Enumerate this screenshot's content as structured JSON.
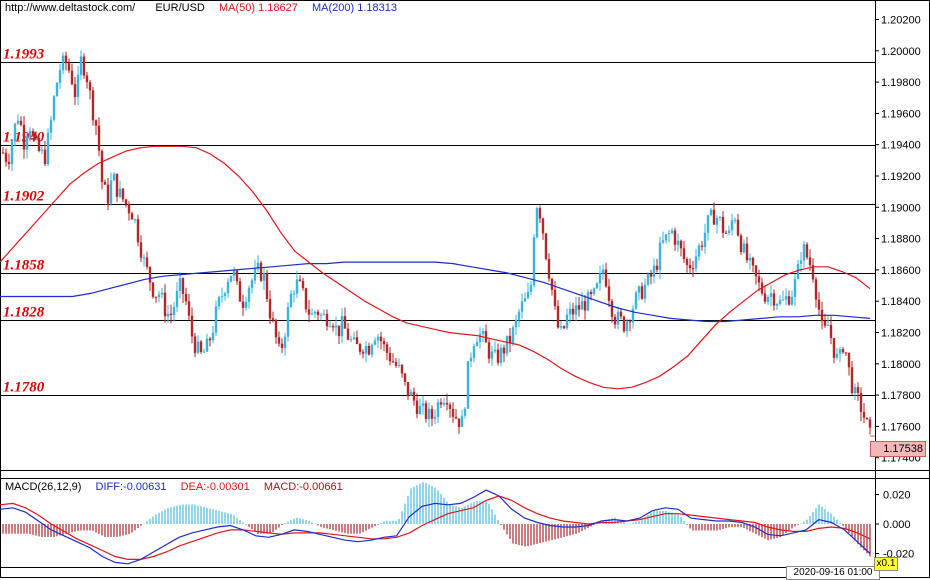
{
  "header": {
    "site": "http://www.deltastock.com/",
    "symbol": "EUR/USD",
    "ma50_label": "MA(50)",
    "ma50_value": "1.18627",
    "ma200_label": "MA(200)",
    "ma200_value": "1.18313"
  },
  "colors": {
    "up": "#39b4dc",
    "down": "#b3262a",
    "ma50": "#e0161b",
    "ma200": "#1d2ccc",
    "level_text": "#e00000",
    "macd_pos": "#39b4dc",
    "macd_neg": "#a3131b"
  },
  "macd_header": {
    "label": "MACD(26,12,9)",
    "diff": "DIFF:-0.00631",
    "dea": "DEA:-0.00301",
    "macd": "MACD:-0.00661"
  },
  "price_box": "1.17538",
  "date_label": "2020-09-16 01:00",
  "zoom_label": "x0.1",
  "chart_data": [
    {
      "type": "candlestick",
      "title": "EUR/USD",
      "ylim": [
        1.1735,
        1.2035
      ],
      "y_ticks": [
        "1.20200",
        "1.20000",
        "1.19800",
        "1.19600",
        "1.19400",
        "1.19200",
        "1.19000",
        "1.18800",
        "1.18600",
        "1.18400",
        "1.18200",
        "1.18000",
        "1.17800",
        "1.17600",
        "1.17400"
      ],
      "levels": [
        {
          "label": "1.1993",
          "value": 1.1993
        },
        {
          "label": "1.1940",
          "value": 1.194
        },
        {
          "label": "1.1902",
          "value": 1.1902
        },
        {
          "label": "1.1858",
          "value": 1.1858
        },
        {
          "label": "1.1828",
          "value": 1.1828
        },
        {
          "label": "1.1780",
          "value": 1.178
        }
      ],
      "close_path": [
        1.1935,
        1.193,
        1.1948,
        1.196,
        1.1942,
        1.1955,
        1.194,
        1.1935,
        1.1932,
        1.195,
        1.1975,
        1.199,
        1.1993,
        1.1985,
        1.197,
        1.1995,
        1.1985,
        1.1965,
        1.195,
        1.1915,
        1.1905,
        1.192,
        1.191,
        1.1905,
        1.19,
        1.1895,
        1.188,
        1.1865,
        1.1855,
        1.1845,
        1.1845,
        1.1835,
        1.183,
        1.184,
        1.185,
        1.184,
        1.182,
        1.181,
        1.1805,
        1.181,
        1.182,
        1.1835,
        1.1845,
        1.1855,
        1.186,
        1.1845,
        1.184,
        1.185,
        1.1855,
        1.186,
        1.1855,
        1.1835,
        1.182,
        1.1805,
        1.1822,
        1.1842,
        1.1852,
        1.1848,
        1.1838,
        1.183,
        1.1835,
        1.183,
        1.183,
        1.183,
        1.182,
        1.1825,
        1.1818,
        1.1812,
        1.181,
        1.1812,
        1.181,
        1.182,
        1.1818,
        1.181,
        1.1805,
        1.18,
        1.1795,
        1.1785,
        1.178,
        1.1775,
        1.177,
        1.1768,
        1.1765,
        1.1772,
        1.178,
        1.178,
        1.177,
        1.1765,
        1.1762,
        1.1795,
        1.1815,
        1.182,
        1.1815,
        1.1808,
        1.1803,
        1.1805,
        1.181,
        1.1815,
        1.1823,
        1.1835,
        1.184,
        1.1845,
        1.1905,
        1.1895,
        1.187,
        1.185,
        1.1825,
        1.1818,
        1.183,
        1.1833,
        1.1835,
        1.1838,
        1.184,
        1.1842,
        1.185,
        1.1862,
        1.1845,
        1.183,
        1.1828,
        1.1825,
        1.1832,
        1.184,
        1.1845,
        1.185,
        1.1855,
        1.1862,
        1.1875,
        1.188,
        1.1885,
        1.1878,
        1.187,
        1.1862,
        1.1865,
        1.1872,
        1.188,
        1.189,
        1.1895,
        1.1893,
        1.1885,
        1.1882,
        1.1898,
        1.188,
        1.187,
        1.1862,
        1.1855,
        1.1848,
        1.1844,
        1.1845,
        1.1842,
        1.1838,
        1.1842,
        1.1845,
        1.1855,
        1.1875,
        1.1868,
        1.186,
        1.184,
        1.1818,
        1.1825,
        1.181,
        1.18,
        1.1815,
        1.1795,
        1.178,
        1.1775,
        1.1765,
        1.1754
      ],
      "ma50": [
        1.1865,
        1.1875,
        1.1885,
        1.1895,
        1.1905,
        1.1915,
        1.1922,
        1.1928,
        1.1932,
        1.1936,
        1.1938,
        1.1939,
        1.1939,
        1.1939,
        1.1938,
        1.1934,
        1.1928,
        1.192,
        1.191,
        1.1898,
        1.1884,
        1.1872,
        1.1865,
        1.1858,
        1.1852,
        1.1846,
        1.184,
        1.1835,
        1.183,
        1.1826,
        1.1824,
        1.1822,
        1.182,
        1.1819,
        1.1818,
        1.1816,
        1.1814,
        1.1812,
        1.1808,
        1.1803,
        1.1797,
        1.1792,
        1.1788,
        1.1785,
        1.1784,
        1.1785,
        1.1788,
        1.1792,
        1.1798,
        1.1805,
        1.1815,
        1.1825,
        1.1833,
        1.184,
        1.1847,
        1.1852,
        1.1857,
        1.186,
        1.1862,
        1.1862,
        1.1859,
        1.1855,
        1.1848
      ],
      "ma200": [
        1.1843,
        1.1843,
        1.1843,
        1.1843,
        1.1843,
        1.1845,
        1.1848,
        1.1851,
        1.1854,
        1.1856,
        1.1857,
        1.1858,
        1.1859,
        1.186,
        1.1861,
        1.1862,
        1.1863,
        1.1864,
        1.1864,
        1.1865,
        1.1865,
        1.1865,
        1.1865,
        1.1865,
        1.1865,
        1.1864,
        1.1862,
        1.186,
        1.1858,
        1.1855,
        1.1852,
        1.1848,
        1.1844,
        1.184,
        1.1836,
        1.1833,
        1.1831,
        1.1829,
        1.1828,
        1.1827,
        1.1827,
        1.1828,
        1.1829,
        1.183,
        1.183,
        1.1831,
        1.1831,
        1.183,
        1.1829
      ]
    },
    {
      "type": "macd",
      "title": "MACD(26,12,9)",
      "ylim": [
        -0.031,
        0.031
      ],
      "y_ticks": [
        "0.020",
        "0.000",
        "-0.020"
      ],
      "diff": [
        0.01,
        0.011,
        0.008,
        0.002,
        -0.004,
        -0.008,
        -0.012,
        -0.016,
        -0.022,
        -0.026,
        -0.027,
        -0.024,
        -0.019,
        -0.014,
        -0.009,
        -0.006,
        -0.004,
        -0.002,
        -0.001,
        -0.004,
        -0.008,
        -0.009,
        -0.007,
        -0.004,
        -0.005,
        -0.007,
        -0.009,
        -0.011,
        -0.012,
        -0.011,
        -0.009,
        -0.008,
        0.005,
        0.012,
        0.014,
        0.013,
        0.014,
        0.018,
        0.023,
        0.019,
        0.01,
        0.004,
        0.001,
        -0.001,
        -0.002,
        -0.002,
        -0.001,
        0.002,
        0.003,
        0.002,
        0.004,
        0.009,
        0.011,
        0.01,
        0.004,
        0.003,
        0.002,
        0.002,
        0.001,
        -0.002,
        -0.007,
        -0.008,
        -0.006,
        -0.004,
        0.003,
        0.001,
        -0.004,
        -0.012,
        -0.02
      ],
      "dea": [
        0.013,
        0.014,
        0.011,
        0.006,
        0.0,
        -0.005,
        -0.01,
        -0.014,
        -0.018,
        -0.022,
        -0.024,
        -0.024,
        -0.022,
        -0.019,
        -0.015,
        -0.012,
        -0.009,
        -0.006,
        -0.004,
        -0.004,
        -0.005,
        -0.006,
        -0.007,
        -0.006,
        -0.006,
        -0.006,
        -0.007,
        -0.008,
        -0.009,
        -0.01,
        -0.01,
        -0.009,
        -0.006,
        -0.001,
        0.003,
        0.007,
        0.009,
        0.011,
        0.016,
        0.019,
        0.016,
        0.011,
        0.007,
        0.004,
        0.002,
        0.001,
        0.0,
        0.001,
        0.001,
        0.002,
        0.003,
        0.005,
        0.007,
        0.007,
        0.006,
        0.005,
        0.004,
        0.003,
        0.002,
        0.001,
        -0.002,
        -0.004,
        -0.005,
        -0.005,
        -0.003,
        -0.002,
        -0.003,
        -0.006,
        -0.01
      ]
    }
  ]
}
